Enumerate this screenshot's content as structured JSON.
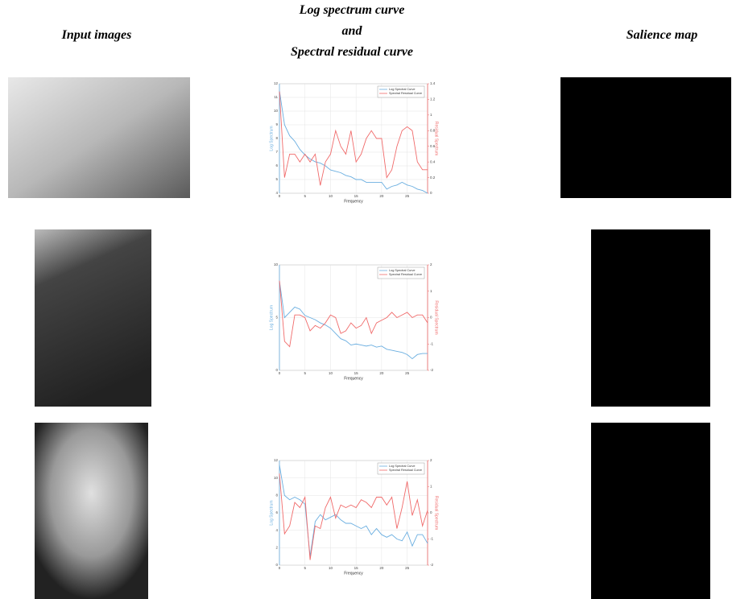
{
  "headers": {
    "input": "Input images",
    "curves": [
      "Log spectrum curve",
      "and",
      "Spectral residual curve"
    ],
    "salience": "Salience map"
  },
  "chart_data": [
    {
      "type": "line",
      "xlabel": "Frequency",
      "ylabel": "Log Spectrum",
      "y2label": "Residual Spectrum",
      "x": [
        0,
        1,
        2,
        3,
        4,
        5,
        6,
        7,
        8,
        9,
        10,
        11,
        12,
        13,
        14,
        15,
        16,
        17,
        18,
        19,
        20,
        21,
        22,
        23,
        24,
        25,
        26,
        27,
        28,
        29
      ],
      "xlim": [
        0,
        29
      ],
      "xticks": [
        0,
        5,
        10,
        15,
        20,
        25
      ],
      "ylim": [
        4,
        12
      ],
      "yticks": [
        4,
        5,
        6,
        7,
        8,
        9,
        10,
        11,
        12
      ],
      "y2lim": [
        0,
        1.4
      ],
      "y2ticks": [
        0,
        0.2,
        0.4,
        0.6,
        0.8,
        1,
        1.2,
        1.4
      ],
      "grid": true,
      "legend": "upper right",
      "series": [
        {
          "name": "Log Spectral Curve",
          "color": "#6aaee0",
          "values": [
            11.5,
            9,
            8.2,
            7.8,
            7.2,
            6.8,
            6.5,
            6.3,
            6.2,
            6,
            5.7,
            5.6,
            5.5,
            5.3,
            5.2,
            5,
            5,
            4.8,
            4.8,
            4.8,
            4.8,
            4.3,
            4.5,
            4.6,
            4.8,
            4.6,
            4.5,
            4.3,
            4.2,
            4
          ]
        },
        {
          "name": "Spectral Residual Curve",
          "color": "#f06a6a",
          "axis": "y2",
          "values": [
            1.3,
            0.2,
            0.5,
            0.5,
            0.4,
            0.5,
            0.4,
            0.5,
            0.1,
            0.4,
            0.5,
            0.8,
            0.6,
            0.5,
            0.8,
            0.4,
            0.5,
            0.7,
            0.8,
            0.7,
            0.7,
            0.2,
            0.3,
            0.6,
            0.8,
            0.85,
            0.8,
            0.4,
            0.3,
            0.3
          ]
        }
      ]
    },
    {
      "type": "line",
      "xlabel": "Frequency",
      "ylabel": "Log Spectrum",
      "y2label": "Residual Spectrum",
      "x": [
        0,
        1,
        2,
        3,
        4,
        5,
        6,
        7,
        8,
        9,
        10,
        11,
        12,
        13,
        14,
        15,
        16,
        17,
        18,
        19,
        20,
        21,
        22,
        23,
        24,
        25,
        26,
        27,
        28,
        29
      ],
      "xlim": [
        0,
        29
      ],
      "xticks": [
        0,
        5,
        10,
        15,
        20,
        25
      ],
      "ylim": [
        0,
        10
      ],
      "yticks": [
        0,
        5,
        10
      ],
      "y2lim": [
        -2,
        2
      ],
      "y2ticks": [
        -2,
        -1,
        0,
        1,
        2
      ],
      "grid": true,
      "legend": "upper right",
      "series": [
        {
          "name": "Log Spectral Curve",
          "color": "#6aaee0",
          "values": [
            8.5,
            5,
            5.5,
            6,
            5.8,
            5.2,
            5,
            4.8,
            4.5,
            4.3,
            4,
            3.5,
            3,
            2.8,
            2.4,
            2.5,
            2.4,
            2.3,
            2.4,
            2.2,
            2.3,
            2,
            1.9,
            1.8,
            1.7,
            1.5,
            1.1,
            1.5,
            1.6,
            1.6
          ]
        },
        {
          "name": "Spectral Residual Curve",
          "color": "#f06a6a",
          "axis": "y2",
          "values": [
            1.4,
            -0.9,
            -1.1,
            0.1,
            0.1,
            0,
            -0.5,
            -0.3,
            -0.4,
            -0.2,
            0.1,
            0,
            -0.6,
            -0.5,
            -0.2,
            -0.4,
            -0.3,
            0,
            -0.6,
            -0.2,
            -0.1,
            0,
            0.2,
            0,
            0.1,
            0.2,
            0,
            0.1,
            0.1,
            -0.2
          ]
        }
      ]
    },
    {
      "type": "line",
      "xlabel": "Frequency",
      "ylabel": "Log Spectrum",
      "y2label": "Residual Spectrum",
      "x": [
        0,
        1,
        2,
        3,
        4,
        5,
        6,
        7,
        8,
        9,
        10,
        11,
        12,
        13,
        14,
        15,
        16,
        17,
        18,
        19,
        20,
        21,
        22,
        23,
        24,
        25,
        26,
        27,
        28,
        29
      ],
      "xlim": [
        0,
        29
      ],
      "xticks": [
        0,
        5,
        10,
        15,
        20,
        25
      ],
      "ylim": [
        0,
        12
      ],
      "yticks": [
        0,
        2,
        4,
        6,
        8,
        10,
        12
      ],
      "y2lim": [
        -2,
        2
      ],
      "y2ticks": [
        -2,
        -1,
        0,
        1,
        2
      ],
      "grid": true,
      "legend": "upper right",
      "series": [
        {
          "name": "Log Spectral Curve",
          "color": "#6aaee0",
          "values": [
            11.5,
            8,
            7.5,
            7.8,
            7.5,
            7,
            1,
            5,
            5.8,
            5.2,
            5.5,
            5.8,
            5.2,
            4.8,
            4.8,
            4.5,
            4.2,
            4.5,
            3.5,
            4.2,
            3.5,
            3.2,
            3.5,
            3,
            2.8,
            3.8,
            2.2,
            3.5,
            3.5,
            2.5
          ]
        },
        {
          "name": "Spectral Residual Curve",
          "color": "#f06a6a",
          "axis": "y2",
          "values": [
            1.5,
            -0.8,
            -0.5,
            0.4,
            0.2,
            0.6,
            -1.8,
            -0.5,
            -0.6,
            0.2,
            0.6,
            -0.2,
            0.3,
            0.2,
            0.3,
            0.2,
            0.5,
            0.4,
            0.2,
            0.6,
            0.6,
            0.3,
            0.6,
            -0.6,
            0.2,
            1.2,
            -0.1,
            0.5,
            -0.5,
            0.1
          ]
        }
      ]
    }
  ]
}
